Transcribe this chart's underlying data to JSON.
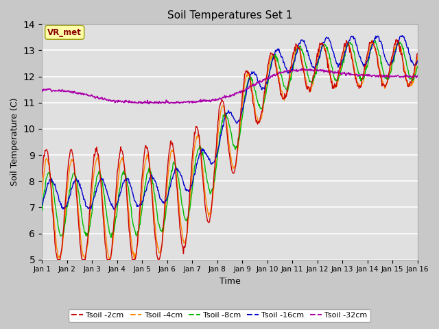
{
  "title": "Soil Temperatures Set 1",
  "xlabel": "Time",
  "ylabel": "Soil Temperature (C)",
  "ylim": [
    5.0,
    14.0
  ],
  "yticks": [
    5.0,
    6.0,
    7.0,
    8.0,
    9.0,
    10.0,
    11.0,
    12.0,
    13.0,
    14.0
  ],
  "xtick_labels": [
    "Jan 1",
    "Jan 2",
    "Jan 3",
    "Jan 4",
    "Jan 5",
    "Jan 6",
    "Jan 7",
    "Jan 8",
    "Jan 9",
    "Jan 10",
    "Jan 11",
    "Jan 12",
    "Jan 13",
    "Jan 14",
    "Jan 15",
    "Jan 16"
  ],
  "colors": {
    "Tsoil -2cm": "#cc0000",
    "Tsoil -4cm": "#ff8800",
    "Tsoil -8cm": "#00bb00",
    "Tsoil -16cm": "#0000cc",
    "Tsoil -32cm": "#aa00aa"
  },
  "fig_bg_color": "#c8c8c8",
  "plot_bg_color": "#e0e0e0",
  "annotation_box_color": "#ffffaa",
  "annotation_text": "VR_met",
  "annotation_text_color": "#880000"
}
